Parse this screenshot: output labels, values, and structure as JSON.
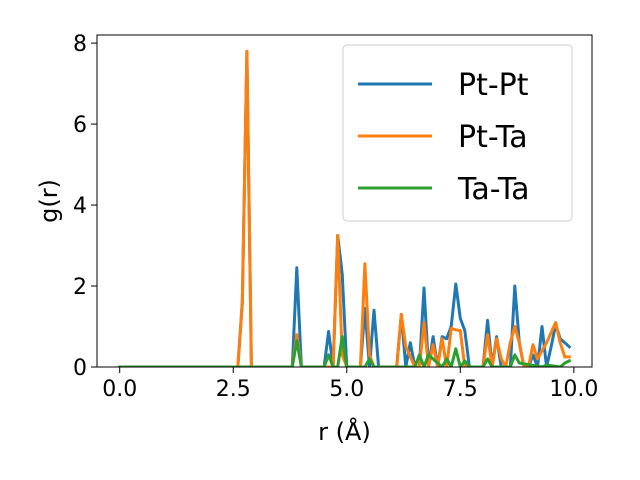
{
  "chart_data": {
    "type": "line",
    "xlabel": "r (Å)",
    "ylabel": "g(r)",
    "xlim": [
      -0.5,
      10.4
    ],
    "ylim": [
      0,
      8.2
    ],
    "xticks": [
      "0.0",
      "2.5",
      "5.0",
      "7.5",
      "10.0"
    ],
    "yticks": [
      "0",
      "2",
      "4",
      "6",
      "8"
    ],
    "legend_position": "top-right",
    "grid": false,
    "series": [
      {
        "name": "Pt-Pt",
        "color": "#1f77b4",
        "x": [
          0.0,
          2.6,
          2.7,
          2.8,
          2.9,
          3.8,
          3.9,
          4.0,
          4.5,
          4.6,
          4.7,
          4.8,
          4.9,
          5.0,
          5.3,
          5.4,
          5.5,
          5.6,
          5.7,
          6.1,
          6.2,
          6.3,
          6.4,
          6.5,
          6.6,
          6.7,
          6.8,
          6.9,
          7.0,
          7.1,
          7.2,
          7.3,
          7.4,
          7.5,
          7.6,
          7.7,
          7.8,
          8.0,
          8.1,
          8.2,
          8.3,
          8.4,
          8.6,
          8.7,
          8.8,
          8.9,
          9.0,
          9.1,
          9.2,
          9.3,
          9.4,
          9.5,
          9.6,
          9.7,
          9.8,
          9.9
        ],
        "y": [
          0.0,
          0.0,
          1.6,
          7.8,
          0.0,
          0.0,
          2.45,
          0.0,
          0.0,
          0.88,
          0.0,
          3.25,
          2.3,
          0.0,
          0.0,
          1.45,
          0.0,
          1.4,
          0.0,
          0.0,
          1.3,
          0.0,
          0.6,
          0.0,
          0.0,
          1.95,
          0.0,
          0.75,
          0.0,
          0.75,
          0.7,
          1.0,
          2.05,
          1.2,
          0.9,
          0.0,
          0.0,
          0.0,
          1.15,
          0.0,
          0.75,
          0.0,
          0.0,
          2.0,
          0.6,
          0.0,
          0.0,
          0.3,
          0.0,
          1.0,
          0.0,
          0.5,
          1.05,
          0.7,
          0.6,
          0.5
        ]
      },
      {
        "name": "Pt-Ta",
        "color": "#ff7f0e",
        "x": [
          0.0,
          2.6,
          2.7,
          2.8,
          2.9,
          3.8,
          3.9,
          4.0,
          4.7,
          4.8,
          4.9,
          5.0,
          5.3,
          5.4,
          5.5,
          5.6,
          6.1,
          6.2,
          6.3,
          6.5,
          6.6,
          6.7,
          6.8,
          6.9,
          7.0,
          7.1,
          7.2,
          7.3,
          7.4,
          7.5,
          7.6,
          7.8,
          8.0,
          8.1,
          8.2,
          8.3,
          8.4,
          8.5,
          8.6,
          8.7,
          8.8,
          8.9,
          9.0,
          9.1,
          9.2,
          9.3,
          9.4,
          9.5,
          9.6,
          9.7,
          9.8,
          9.9
        ],
        "y": [
          0.0,
          0.0,
          1.55,
          7.8,
          0.0,
          0.0,
          0.8,
          0.0,
          0.0,
          3.25,
          0.3,
          0.0,
          0.0,
          2.55,
          0.3,
          0.0,
          0.0,
          1.3,
          0.5,
          0.0,
          0.0,
          1.1,
          0.0,
          0.55,
          0.0,
          0.7,
          0.0,
          0.95,
          0.92,
          0.9,
          0.0,
          0.0,
          0.0,
          0.8,
          0.0,
          0.7,
          0.2,
          0.0,
          0.6,
          1.0,
          0.6,
          0.0,
          0.0,
          0.55,
          0.2,
          0.4,
          0.6,
          0.85,
          1.1,
          0.6,
          0.25,
          0.25
        ]
      },
      {
        "name": "Ta-Ta",
        "color": "#2ca02c",
        "x": [
          0.0,
          3.8,
          3.9,
          4.0,
          4.5,
          4.6,
          4.7,
          4.8,
          4.9,
          5.0,
          5.4,
          5.5,
          5.6,
          6.5,
          6.6,
          6.7,
          6.8,
          7.1,
          7.2,
          7.3,
          7.4,
          7.5,
          7.6,
          7.7,
          8.0,
          8.1,
          8.2,
          8.6,
          8.7,
          8.8,
          9.3,
          9.4,
          9.7,
          9.8,
          9.9
        ],
        "y": [
          0.0,
          0.0,
          0.65,
          0.0,
          0.0,
          0.3,
          0.0,
          0.0,
          0.75,
          0.0,
          0.0,
          0.2,
          0.0,
          0.0,
          0.3,
          0.0,
          0.3,
          0.0,
          0.2,
          0.0,
          0.45,
          0.0,
          0.15,
          0.0,
          0.0,
          0.2,
          0.0,
          0.0,
          0.3,
          0.1,
          0.0,
          0.05,
          0.0,
          0.1,
          0.15
        ]
      }
    ]
  }
}
